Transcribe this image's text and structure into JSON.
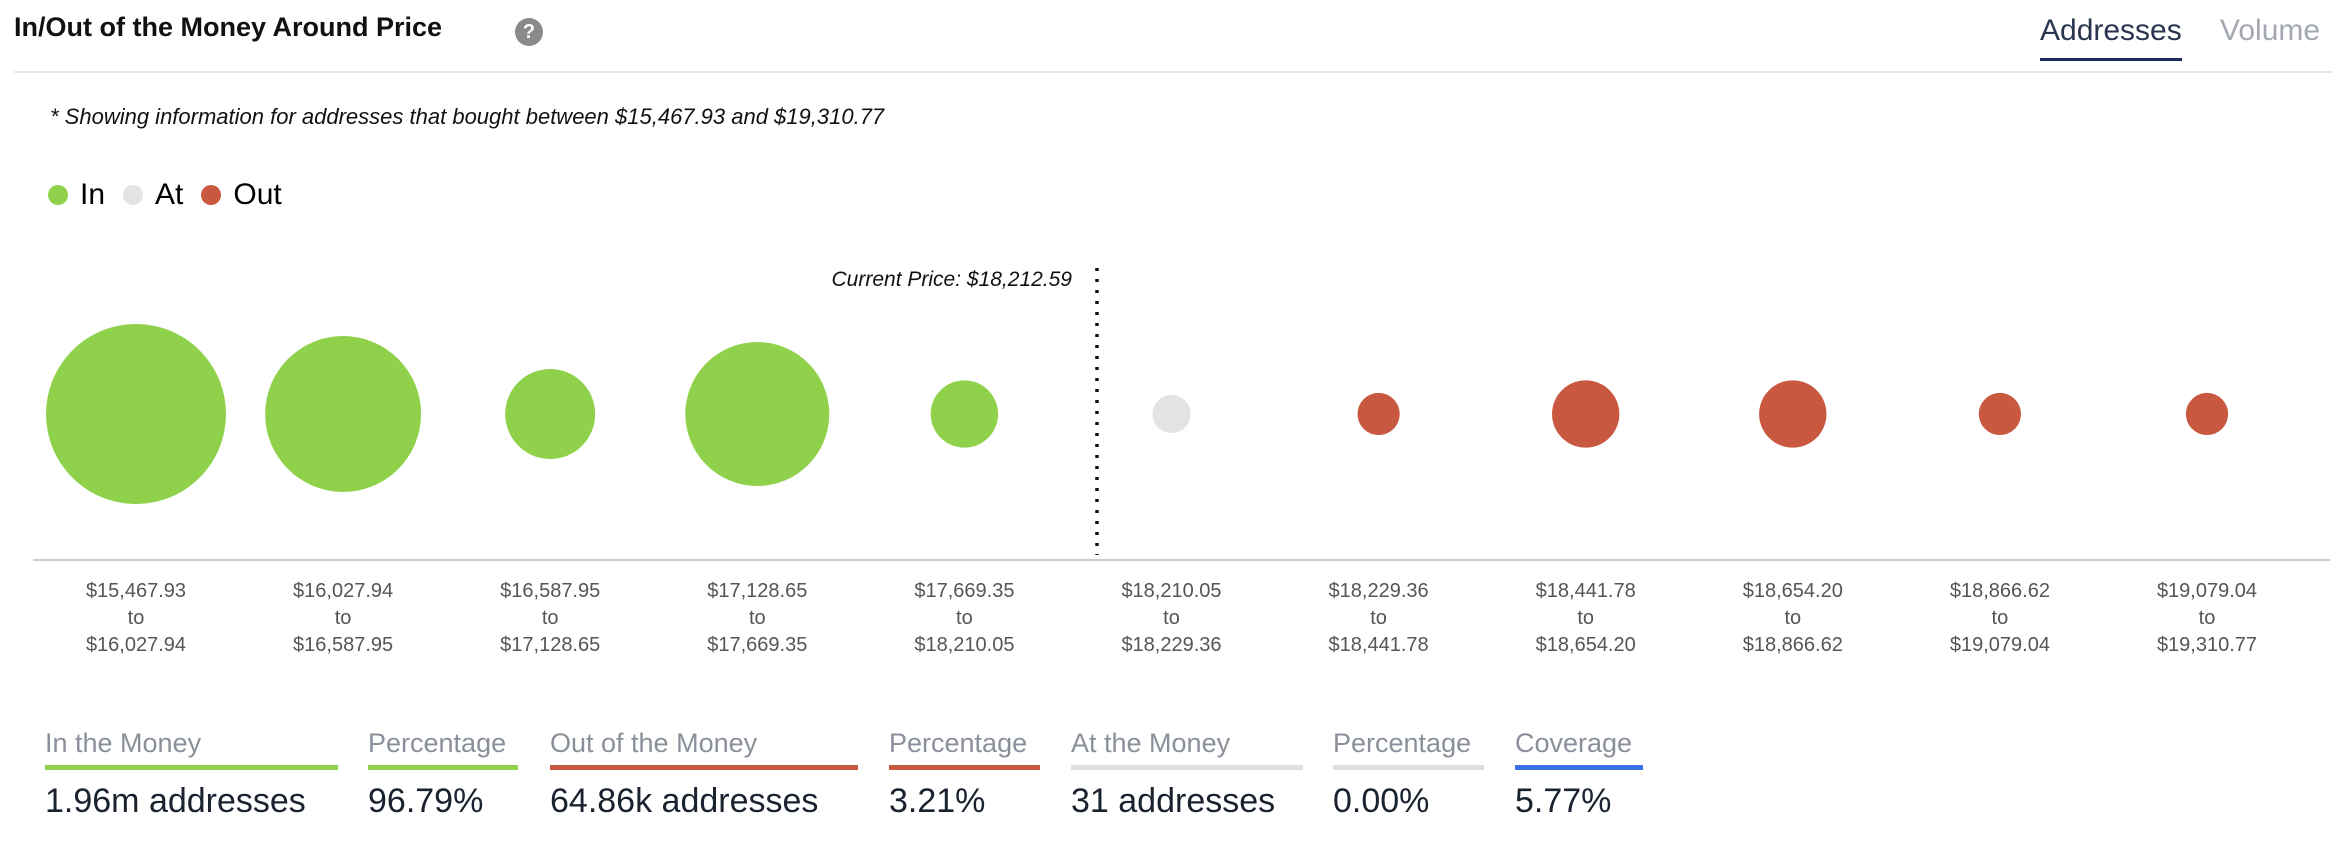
{
  "header": {
    "title": "In/Out of the Money Around Price",
    "help_icon": "?",
    "tabs": [
      {
        "label": "Addresses",
        "active": true
      },
      {
        "label": "Volume",
        "active": false
      }
    ]
  },
  "note": "* Showing information for addresses that bought between $15,467.93 and $19,310.77",
  "legend": [
    {
      "label": "In",
      "color": "#8fd14a"
    },
    {
      "label": "At",
      "color": "#e3e3e3"
    },
    {
      "label": "Out",
      "color": "#c95840"
    }
  ],
  "chart_data": {
    "type": "scatter",
    "title": "In/Out of the Money Around Price",
    "current_price_label": "Current Price: $18,212.59",
    "current_price": 18212.59,
    "bins": [
      {
        "from": "$15,467.93",
        "to_word": "to",
        "to": "$16,027.94",
        "status": "In",
        "relative_size": 1.0
      },
      {
        "from": "$16,027.94",
        "to_word": "to",
        "to": "$16,587.95",
        "status": "In",
        "relative_size": 0.75
      },
      {
        "from": "$16,587.95",
        "to_word": "to",
        "to": "$17,128.65",
        "status": "In",
        "relative_size": 0.25
      },
      {
        "from": "$17,128.65",
        "to_word": "to",
        "to": "$17,669.35",
        "status": "In",
        "relative_size": 0.64
      },
      {
        "from": "$17,669.35",
        "to_word": "to",
        "to": "$18,210.05",
        "status": "In",
        "relative_size": 0.14
      },
      {
        "from": "$18,210.05",
        "to_word": "to",
        "to": "$18,229.36",
        "status": "At",
        "relative_size": 0.045
      },
      {
        "from": "$18,229.36",
        "to_word": "to",
        "to": "$18,441.78",
        "status": "Out",
        "relative_size": 0.055
      },
      {
        "from": "$18,441.78",
        "to_word": "to",
        "to": "$18,654.20",
        "status": "Out",
        "relative_size": 0.14
      },
      {
        "from": "$18,654.20",
        "to_word": "to",
        "to": "$18,866.62",
        "status": "Out",
        "relative_size": 0.14
      },
      {
        "from": "$18,866.62",
        "to_word": "to",
        "to": "$19,079.04",
        "status": "Out",
        "relative_size": 0.055
      },
      {
        "from": "$19,079.04",
        "to_word": "to",
        "to": "$19,310.77",
        "status": "Out",
        "relative_size": 0.055
      }
    ]
  },
  "stats": [
    {
      "label": "In the Money",
      "value": "1.96m addresses",
      "color": "#8fd14a"
    },
    {
      "label": "Percentage",
      "value": "96.79%",
      "color": "#8fd14a"
    },
    {
      "label": "Out of the Money",
      "value": "64.86k addresses",
      "color": "#c95840"
    },
    {
      "label": "Percentage",
      "value": "3.21%",
      "color": "#c95840"
    },
    {
      "label": "At the Money",
      "value": "31 addresses",
      "color": "#dedede"
    },
    {
      "label": "Percentage",
      "value": "0.00%",
      "color": "#dedede"
    },
    {
      "label": "Coverage",
      "value": "5.77%",
      "color": "#3a72e6"
    }
  ]
}
